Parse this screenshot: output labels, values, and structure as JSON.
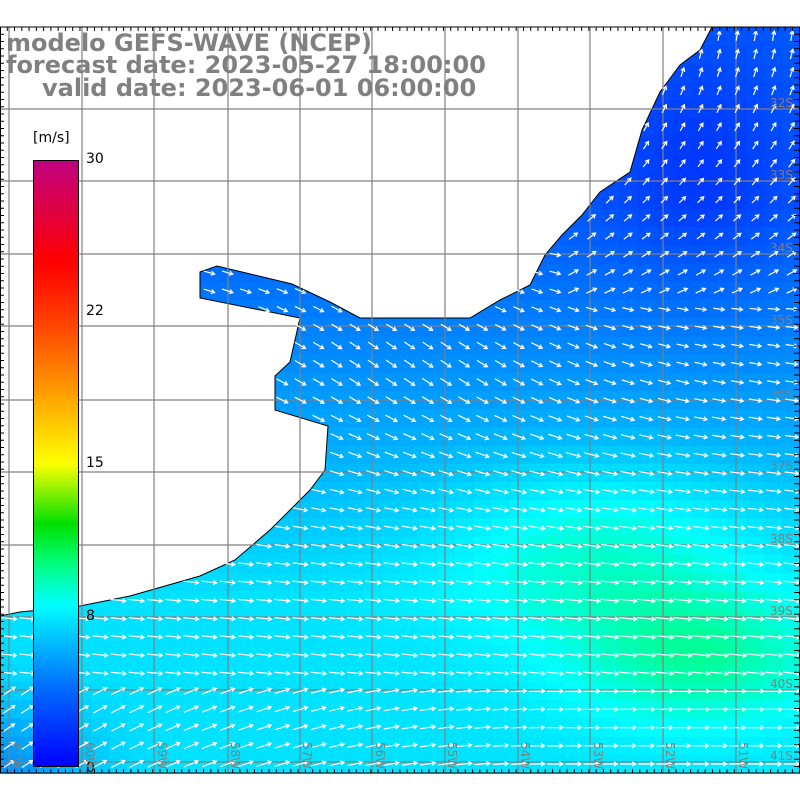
{
  "title": {
    "model": "modelo GEFS-WAVE (NCEP)",
    "forecast": "forecast date: 2023-05-27 18:00:00",
    "valid": "valid date: 2023-06-01 06:00:00"
  },
  "colorbar": {
    "unit": "[m/s]",
    "ticks": [
      "30",
      "22",
      "15",
      "8",
      "0"
    ],
    "tick_values": [
      30,
      22,
      15,
      8,
      0
    ],
    "range": [
      0,
      30
    ],
    "stops": [
      {
        "v": 0,
        "c": "#0000ff"
      },
      {
        "v": 4,
        "c": "#0070ff"
      },
      {
        "v": 8,
        "c": "#00ffff"
      },
      {
        "v": 10,
        "c": "#00ff80"
      },
      {
        "v": 12,
        "c": "#00e000"
      },
      {
        "v": 15,
        "c": "#ffff00"
      },
      {
        "v": 19,
        "c": "#ff9000"
      },
      {
        "v": 22,
        "c": "#ff4000"
      },
      {
        "v": 25,
        "c": "#ff0000"
      },
      {
        "v": 30,
        "c": "#c00080"
      }
    ]
  },
  "lat_labels": [
    "32S",
    "33S",
    "34S",
    "35S",
    "36S",
    "37S",
    "38S",
    "39S",
    "40S",
    "41S"
  ],
  "lon_labels": [
    "61W",
    "60W",
    "59W",
    "58W",
    "57W",
    "56W",
    "55W",
    "54W",
    "53W",
    "52W",
    "51W"
  ],
  "colors": {
    "grid": "#808080",
    "label": "#8a7b72",
    "land": "#ffffff",
    "coast": "#000000",
    "title": "#808080"
  }
}
